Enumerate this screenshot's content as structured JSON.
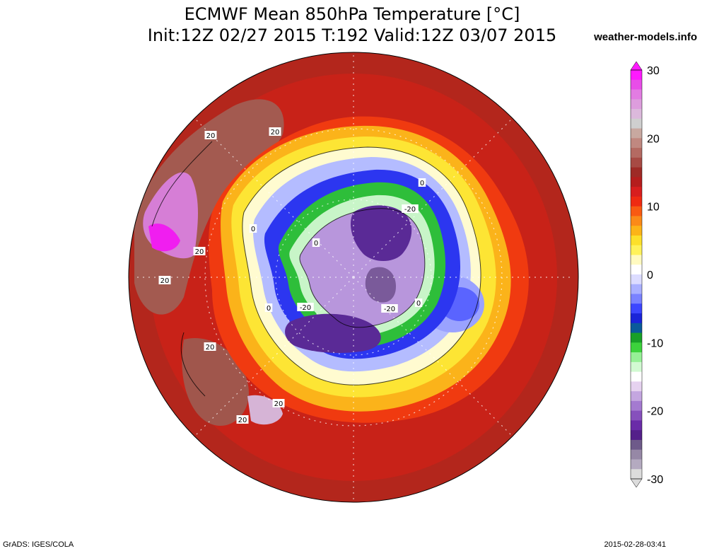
{
  "title": {
    "line1": "ECMWF Mean 850hPa Temperature [°C]",
    "line2": "Init:12Z 02/27 2015 T:192 Valid:12Z 03/07 2015"
  },
  "site": "weather-models.info",
  "footer": {
    "left": "GrADS: IGES/COLA",
    "right": "2015-02-28-03:41"
  },
  "colorbar": {
    "min": -30,
    "max": 30,
    "step": 2,
    "tick_labels": [
      "30",
      "20",
      "10",
      "0",
      "-10",
      "-20",
      "-30"
    ],
    "colors_top_to_bottom": [
      "#ff1aff",
      "#e84de8",
      "#e27ce2",
      "#dd9ddd",
      "#dcb9dc",
      "#cfcfcf",
      "#c8a8a0",
      "#c08880",
      "#b46a62",
      "#a74a44",
      "#9e2a26",
      "#b51d1d",
      "#d81e1e",
      "#ef2a12",
      "#f95a12",
      "#fb8a18",
      "#fcb418",
      "#fde02a",
      "#fff25a",
      "#fffac0",
      "#ffffff",
      "#dcdcff",
      "#aab0ff",
      "#7a82ff",
      "#3c46ff",
      "#1a24d8",
      "#0a5a9a",
      "#18a028",
      "#3cd23c",
      "#96f096",
      "#d2fad2",
      "#ffffff",
      "#e6d2f0",
      "#c4a6e0",
      "#a47ad0",
      "#8650bc",
      "#6a2ca8",
      "#54208a",
      "#6e5a8a",
      "#9688a6",
      "#b4aac0",
      "#dcdcdc"
    ]
  },
  "map": {
    "type": "polar-stereographic",
    "variable": "850hPa temperature",
    "units": "°C",
    "contour_labels": [
      {
        "text": "20"
      },
      {
        "text": "20"
      },
      {
        "text": "20"
      },
      {
        "text": "20"
      },
      {
        "text": "20"
      },
      {
        "text": "20"
      },
      {
        "text": "20"
      },
      {
        "text": "0"
      },
      {
        "text": "0"
      },
      {
        "text": "0"
      },
      {
        "text": "0"
      },
      {
        "text": "0"
      },
      {
        "text": "-20"
      },
      {
        "text": "-20"
      },
      {
        "text": "-20"
      }
    ]
  }
}
